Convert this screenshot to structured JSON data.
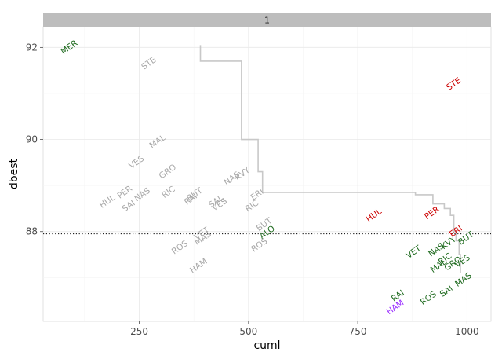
{
  "chart_data": {
    "type": "scatter",
    "facet_label": "1",
    "xlabel": "cuml",
    "ylabel": "dbest",
    "xlim": [
      30,
      1055
    ],
    "ylim": [
      86.05,
      92.45
    ],
    "x_ticks": [
      250,
      500,
      750,
      1000
    ],
    "x_tick_labels": [
      "250",
      "500",
      "750",
      "1000"
    ],
    "y_ticks": [
      88,
      90,
      92
    ],
    "y_tick_labels": [
      "88",
      "90",
      "92"
    ],
    "x_minor_ticks": [
      125,
      375,
      625,
      875
    ],
    "y_minor_ticks": [
      87,
      89,
      91
    ],
    "grid": true,
    "hline": {
      "y": 87.95,
      "style": "dotted",
      "color": "#000000"
    },
    "colors": {
      "grey": "#a8a8a8",
      "green": "#1e6a1e",
      "red": "#cc0000",
      "purple": "#9b30ff",
      "step": "#c8c8c8",
      "strip_bg": "#bdbdbd",
      "panel_bg": "#ffffff",
      "grid": "#ebebeb"
    },
    "step_line": [
      [
        390,
        92.05
      ],
      [
        390,
        91.7
      ],
      [
        484,
        91.7
      ],
      [
        484,
        90.0
      ],
      [
        522,
        90.0
      ],
      [
        522,
        89.3
      ],
      [
        532,
        89.3
      ],
      [
        532,
        88.85
      ],
      [
        882,
        88.85
      ],
      [
        882,
        88.8
      ],
      [
        922,
        88.8
      ],
      [
        922,
        88.6
      ],
      [
        948,
        88.6
      ],
      [
        948,
        88.5
      ],
      [
        962,
        88.5
      ],
      [
        962,
        88.35
      ],
      [
        970,
        88.35
      ],
      [
        970,
        88.0
      ],
      [
        975,
        88.0
      ],
      [
        975,
        87.8
      ],
      [
        982,
        87.8
      ],
      [
        982,
        87.5
      ],
      [
        985,
        87.5
      ],
      [
        985,
        87.1
      ]
    ],
    "points": [
      {
        "label": "MER",
        "x": 90,
        "y": 92.0,
        "color": "green"
      },
      {
        "label": "STE",
        "x": 272,
        "y": 91.65,
        "color": "grey"
      },
      {
        "label": "STE",
        "x": 970,
        "y": 91.2,
        "color": "red"
      },
      {
        "label": "MAL",
        "x": 292,
        "y": 89.95,
        "color": "grey"
      },
      {
        "label": "VES",
        "x": 244,
        "y": 89.5,
        "color": "grey"
      },
      {
        "label": "GRO",
        "x": 315,
        "y": 89.3,
        "color": "grey"
      },
      {
        "label": "NAS",
        "x": 462,
        "y": 89.15,
        "color": "grey"
      },
      {
        "label": "KVY",
        "x": 486,
        "y": 89.25,
        "color": "grey"
      },
      {
        "label": "HUL",
        "x": 177,
        "y": 88.65,
        "color": "grey"
      },
      {
        "label": "PER",
        "x": 217,
        "y": 88.85,
        "color": "grey"
      },
      {
        "label": "SAI",
        "x": 226,
        "y": 88.55,
        "color": "grey"
      },
      {
        "label": "NAS",
        "x": 257,
        "y": 88.8,
        "color": "grey"
      },
      {
        "label": "RIC",
        "x": 317,
        "y": 88.85,
        "color": "grey"
      },
      {
        "label": "BUT",
        "x": 377,
        "y": 88.8,
        "color": "grey"
      },
      {
        "label": "RAI",
        "x": 368,
        "y": 88.7,
        "color": "grey"
      },
      {
        "label": "SAL",
        "x": 426,
        "y": 88.65,
        "color": "grey"
      },
      {
        "label": "VES",
        "x": 434,
        "y": 88.58,
        "color": "grey"
      },
      {
        "label": "ERI",
        "x": 520,
        "y": 88.8,
        "color": "grey"
      },
      {
        "label": "RIC",
        "x": 508,
        "y": 88.55,
        "color": "grey"
      },
      {
        "label": "BUT",
        "x": 536,
        "y": 88.15,
        "color": "grey"
      },
      {
        "label": "ALO",
        "x": 543,
        "y": 87.98,
        "color": "green"
      },
      {
        "label": "ROS",
        "x": 343,
        "y": 87.65,
        "color": "grey"
      },
      {
        "label": "MAS",
        "x": 396,
        "y": 87.85,
        "color": "grey"
      },
      {
        "label": "VET",
        "x": 393,
        "y": 87.95,
        "color": "grey"
      },
      {
        "label": "ROS",
        "x": 525,
        "y": 87.7,
        "color": "grey"
      },
      {
        "label": "HAM",
        "x": 386,
        "y": 87.25,
        "color": "grey"
      },
      {
        "label": "HUL",
        "x": 787,
        "y": 88.35,
        "color": "red"
      },
      {
        "label": "PER",
        "x": 920,
        "y": 88.4,
        "color": "red"
      },
      {
        "label": "VET",
        "x": 878,
        "y": 87.55,
        "color": "green"
      },
      {
        "label": "NAS",
        "x": 930,
        "y": 87.6,
        "color": "green"
      },
      {
        "label": "KVY",
        "x": 958,
        "y": 87.75,
        "color": "green"
      },
      {
        "label": "ERI",
        "x": 975,
        "y": 88.0,
        "color": "red"
      },
      {
        "label": "BUT",
        "x": 998,
        "y": 87.85,
        "color": "green"
      },
      {
        "label": "MAL",
        "x": 935,
        "y": 87.25,
        "color": "green"
      },
      {
        "label": "GRO",
        "x": 968,
        "y": 87.3,
        "color": "green"
      },
      {
        "label": "RIC",
        "x": 950,
        "y": 87.4,
        "color": "green"
      },
      {
        "label": "VES",
        "x": 990,
        "y": 87.35,
        "color": "green"
      },
      {
        "label": "MAS",
        "x": 992,
        "y": 86.95,
        "color": "green"
      },
      {
        "label": "SAI",
        "x": 953,
        "y": 86.7,
        "color": "green"
      },
      {
        "label": "ROS",
        "x": 912,
        "y": 86.55,
        "color": "green"
      },
      {
        "label": "RAI",
        "x": 842,
        "y": 86.6,
        "color": "green"
      },
      {
        "label": "HAM",
        "x": 836,
        "y": 86.35,
        "color": "purple"
      }
    ]
  }
}
